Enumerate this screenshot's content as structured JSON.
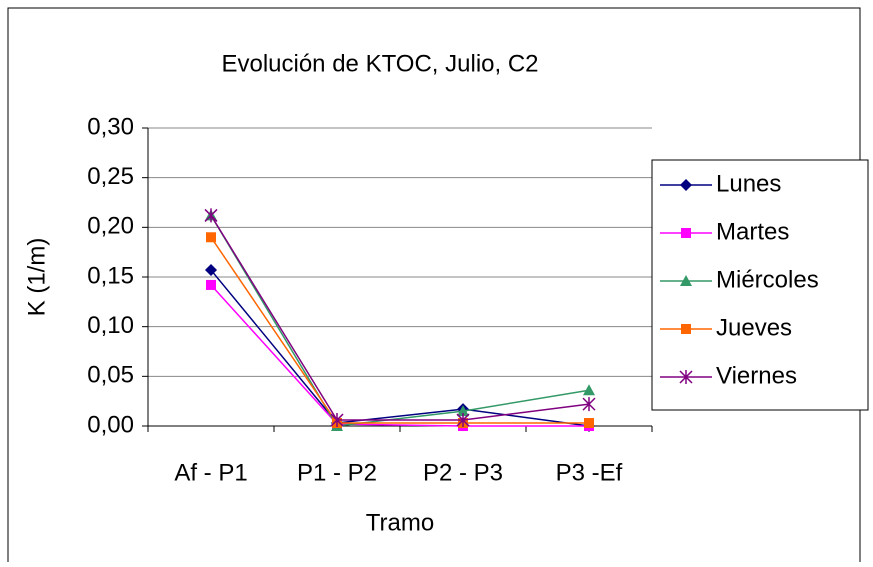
{
  "chart_data": {
    "type": "line",
    "title": "Evolución de KTOC, Julio, C2",
    "x_label": "Tramo",
    "y_label": "K (1/m)",
    "categories": [
      "Af - P1",
      "P1 - P2",
      "P2 - P3",
      "P3 -Ef"
    ],
    "series": [
      {
        "name": "Lunes",
        "color": "#000080",
        "marker": "diamond",
        "values": [
          0.157,
          0.003,
          0.017,
          0.0
        ]
      },
      {
        "name": "Martes",
        "color": "#ff00ff",
        "marker": "square",
        "values": [
          0.142,
          0.002,
          0.0,
          0.0
        ]
      },
      {
        "name": "Miércoles",
        "color": "#339966",
        "marker": "triangle",
        "values": [
          0.212,
          0.0,
          0.015,
          0.036
        ]
      },
      {
        "name": "Jueves",
        "color": "#ff6600",
        "marker": "square",
        "values": [
          0.19,
          0.003,
          0.003,
          0.003
        ]
      },
      {
        "name": "Viernes",
        "color": "#800080",
        "marker": "star",
        "values": [
          0.212,
          0.006,
          0.006,
          0.022
        ]
      }
    ],
    "ylim": [
      0,
      0.3
    ],
    "yticks": [
      {
        "value": 0,
        "label": "0,00"
      },
      {
        "value": 0.05,
        "label": "0,05"
      },
      {
        "value": 0.1,
        "label": "0,10"
      },
      {
        "value": 0.15,
        "label": "0,15"
      },
      {
        "value": 0.2,
        "label": "0,20"
      },
      {
        "value": 0.25,
        "label": "0,25"
      },
      {
        "value": 0.3,
        "label": "0,30"
      }
    ],
    "grid": true,
    "legend": "right"
  }
}
